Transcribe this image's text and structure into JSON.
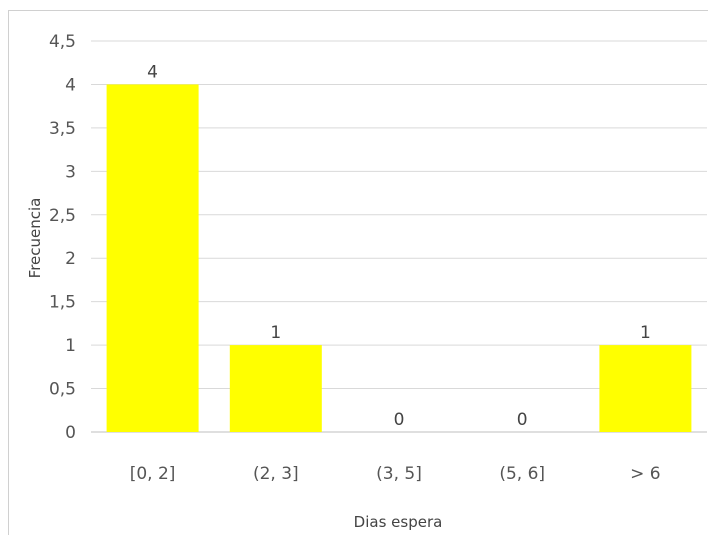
{
  "chart_data": {
    "type": "bar",
    "title": "",
    "xlabel": "Dias espera",
    "ylabel": "Frecuencia",
    "categories": [
      "[0, 2]",
      "(2, 3]",
      "(3, 5]",
      "(5, 6]",
      "> 6"
    ],
    "values": [
      4,
      1,
      0,
      0,
      1
    ],
    "data_labels": [
      "4",
      "1",
      "0",
      "0",
      "1"
    ],
    "ylim": [
      0,
      4.5
    ],
    "yticks": [
      0,
      0.5,
      1,
      1.5,
      2,
      2.5,
      3,
      3.5,
      4,
      4.5
    ],
    "ytick_labels": [
      "0",
      "0,5",
      "1",
      "1,5",
      "2",
      "2,5",
      "3",
      "3,5",
      "4",
      "4,5"
    ],
    "grid": true,
    "legend": "none",
    "bar_color": "#ffff00"
  }
}
